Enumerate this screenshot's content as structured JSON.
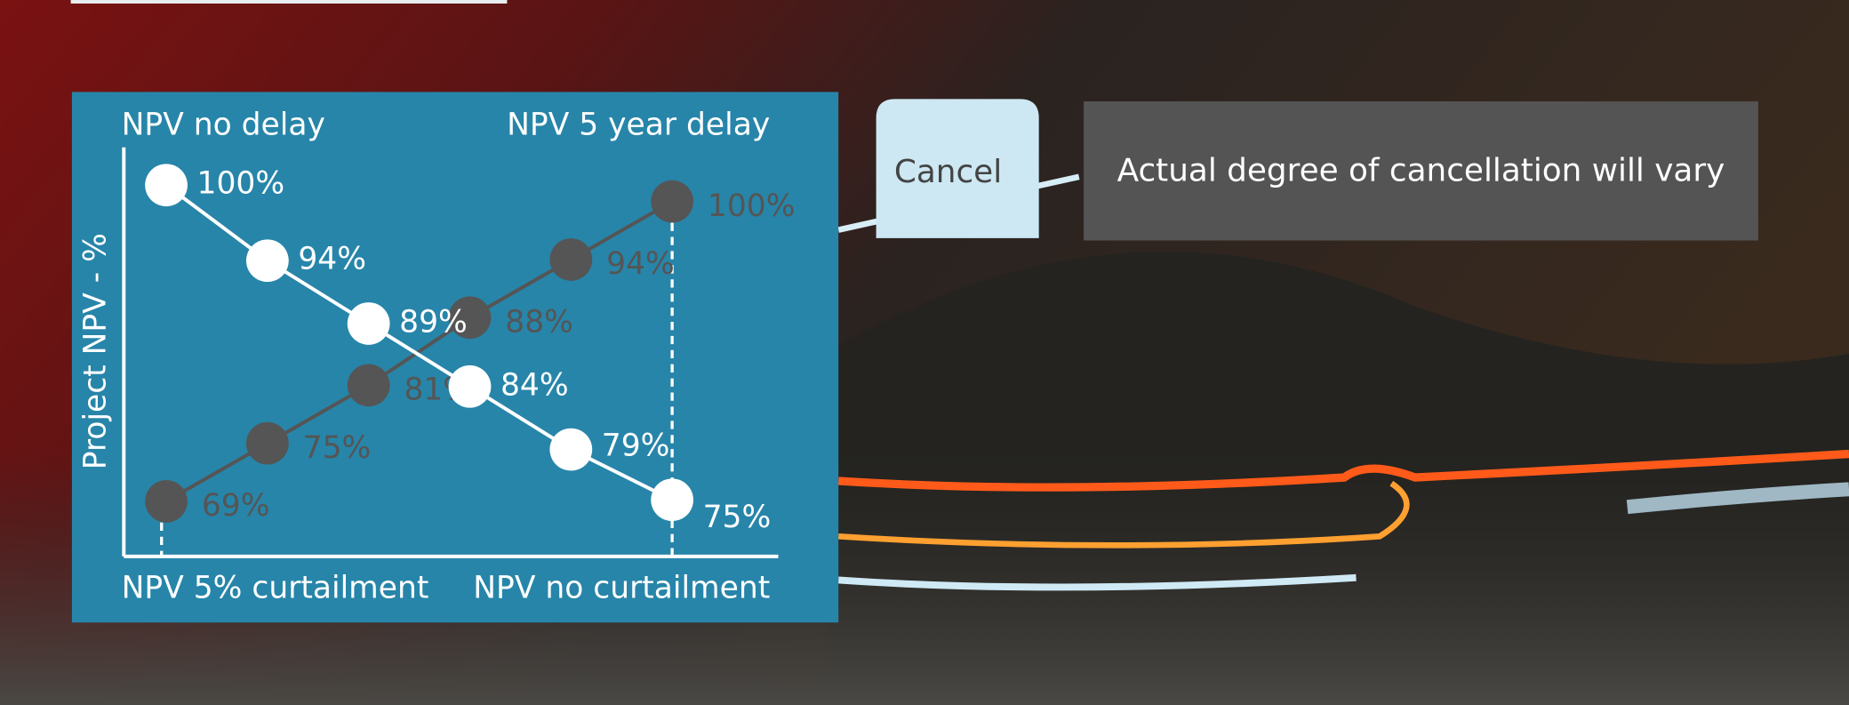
{
  "chart_data": {
    "type": "line",
    "y_label": "Project NPV - %",
    "corner_labels": {
      "top_left": "NPV no delay",
      "top_right": "NPV 5 year delay",
      "bottom_left": "NPV 5% curtailment",
      "bottom_right": "NPV no curtailment"
    },
    "categories": [
      null,
      null,
      null,
      null,
      null,
      null
    ],
    "ylim": [
      70.5,
      103
    ],
    "y2lim": [
      63.3,
      105.6
    ],
    "series": [
      {
        "color": "#ffffff",
        "values": [
          100,
          94,
          89,
          84,
          79,
          75
        ],
        "value_labels": [
          "100%",
          "94%",
          "89%",
          "84%",
          "79%",
          "75%"
        ]
      },
      {
        "color": "#555555",
        "axis": "y2",
        "values": [
          69,
          75,
          81,
          88,
          94,
          100
        ],
        "value_labels": [
          "69%",
          "75%",
          "81%",
          "88%",
          "94%",
          "100%"
        ]
      }
    ]
  },
  "callouts": {
    "button": "Cancel",
    "note": "Actual degree of cancellation will vary"
  }
}
